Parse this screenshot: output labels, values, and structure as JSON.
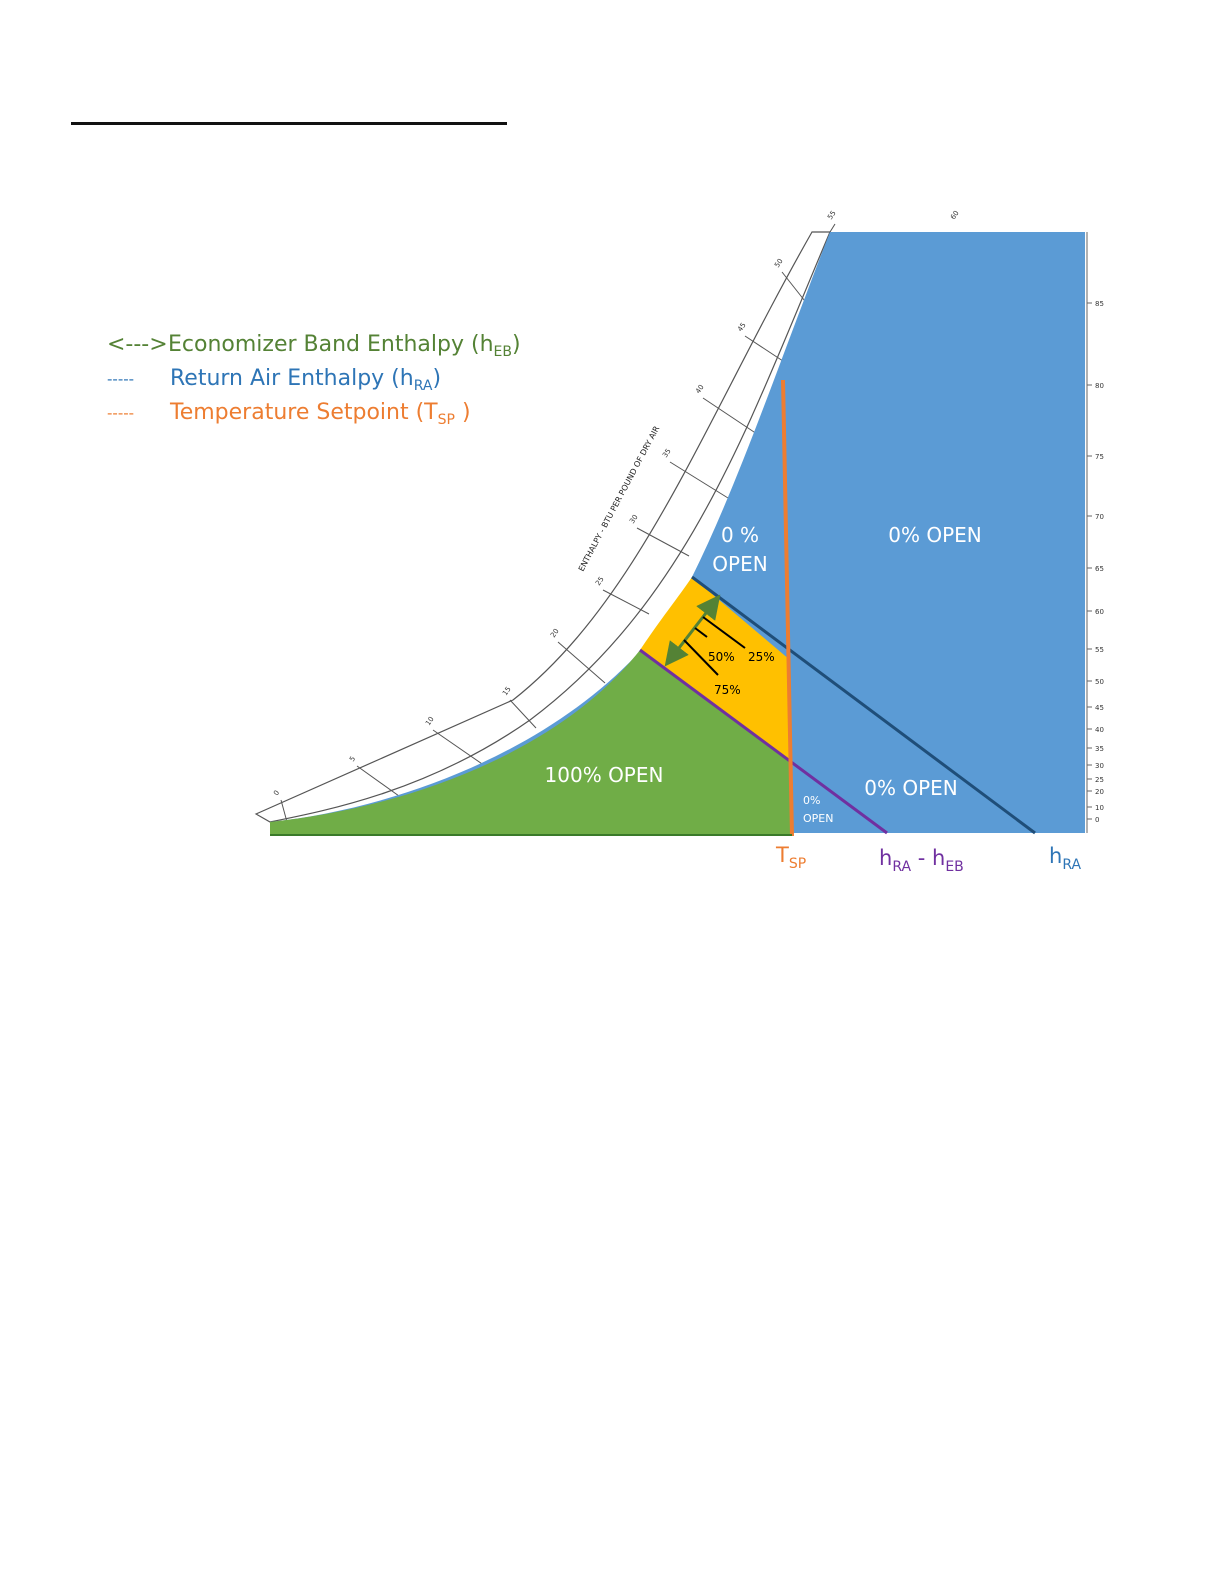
{
  "legend": [
    {
      "marker": "<--->",
      "label": "Economizer Band Enthalpy (h",
      "sub": "EB",
      "suffix": ")",
      "color": "#548235"
    },
    {
      "marker": "-----",
      "label": "Return Air Enthalpy (h",
      "sub": "RA",
      "suffix": ")",
      "color": "#2E75B6"
    },
    {
      "marker": "-----",
      "label": "Temperature Setpoint (T",
      "sub": "SP",
      "suffix": " )",
      "color": "#ED7D31"
    }
  ],
  "regions": {
    "green_label": "100% OPEN",
    "blue_upper_left": [
      "0 %",
      "OPEN"
    ],
    "blue_upper_right": "0% OPEN",
    "blue_lower_right": "0% OPEN",
    "blue_small": [
      "0%",
      "OPEN"
    ]
  },
  "band_labels": {
    "p50": "50%",
    "p25": "25%",
    "p75": "75%"
  },
  "bottom_labels": {
    "tsp": {
      "main": "T",
      "sub": "SP"
    },
    "diff": {
      "main1": "h",
      "sub1": "RA",
      "sep": " - ",
      "main2": "h",
      "sub2": "EB"
    },
    "hra": {
      "main": "h",
      "sub": "RA"
    }
  },
  "enthalpy_axis_title": "ENTHALPY - BTU PER POUND OF DRY AIR",
  "enthalpy_ticks": [
    "0",
    "5",
    "10",
    "15",
    "20",
    "25",
    "30",
    "35",
    "40",
    "45",
    "50",
    "55",
    "60"
  ],
  "right_axis_ticks": [
    "85",
    "80",
    "75",
    "70",
    "65",
    "60",
    "55",
    "50",
    "45",
    "40",
    "35",
    "30",
    "25",
    "20",
    "10",
    "0"
  ],
  "colors": {
    "blue": "#5B9BD5",
    "green": "#70AD47",
    "orange_fill": "#FFC000",
    "purple": "#7030A0",
    "setpoint": "#ED7D31",
    "hra_line": "#1F4E79",
    "arrow": "#548235"
  }
}
